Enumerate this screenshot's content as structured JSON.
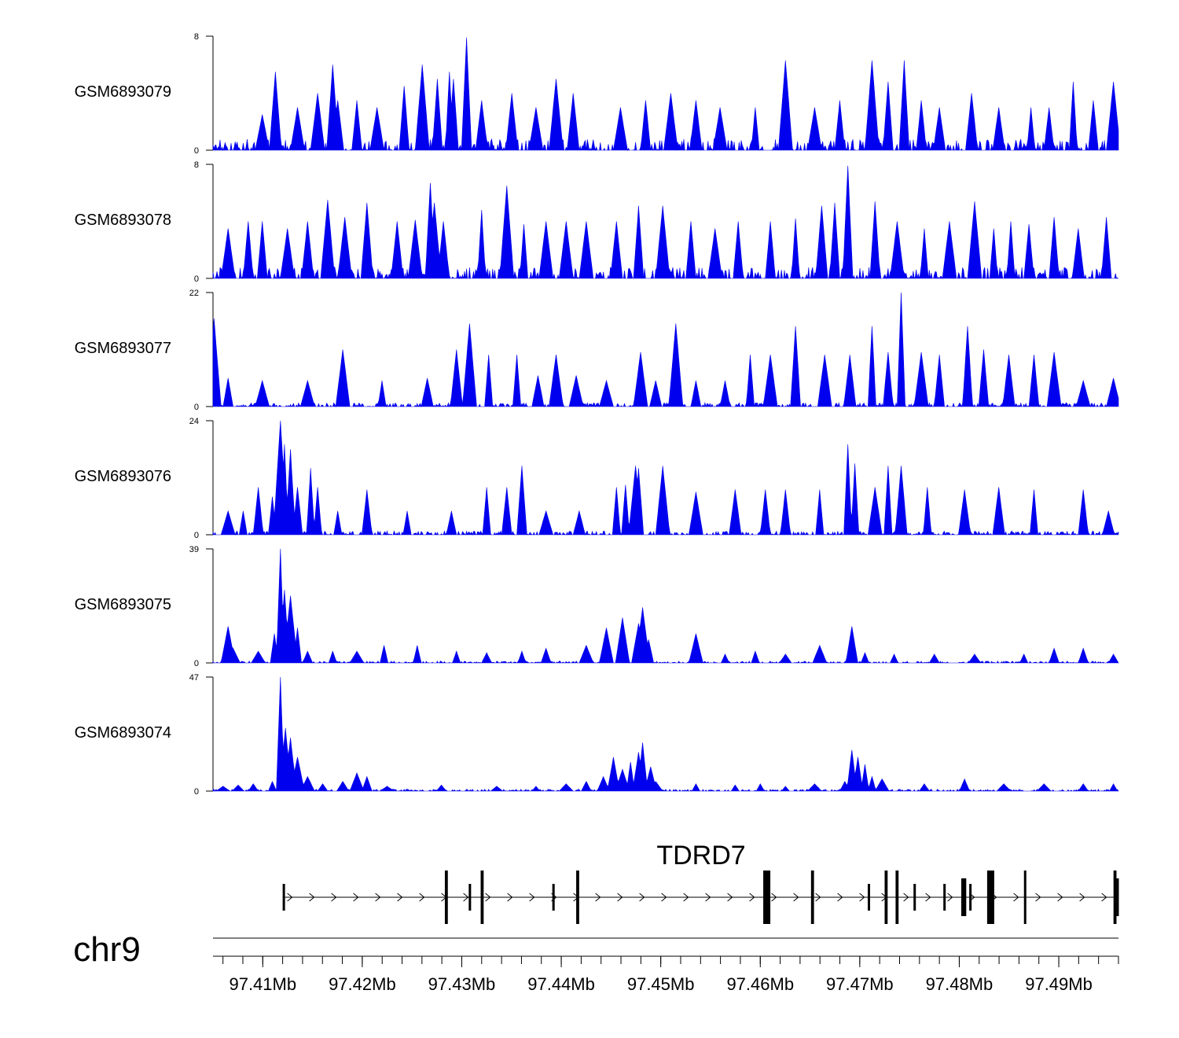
{
  "chart_data": {
    "type": "area",
    "title": "",
    "xlabel": "",
    "ylabel": "",
    "x_unit": "Mb",
    "xlim": [
      97.405,
      97.496
    ],
    "x_ticks": [
      97.41,
      97.42,
      97.43,
      97.44,
      97.45,
      97.46,
      97.47,
      97.48,
      97.49
    ],
    "x_tick_labels": [
      "97.41Mb",
      "97.42Mb",
      "97.43Mb",
      "97.44Mb",
      "97.45Mb",
      "97.46Mb",
      "97.47Mb",
      "97.48Mb",
      "97.49Mb"
    ],
    "chromosome": "chr9",
    "series": [
      {
        "name": "GSM6893079",
        "ymax": 8,
        "ymax_label": "8",
        "ymin_label": "0",
        "peaks": [
          [
            97.41,
            2.5
          ],
          [
            97.4113,
            5.5
          ],
          [
            97.4135,
            3
          ],
          [
            97.4155,
            4
          ],
          [
            97.417,
            6
          ],
          [
            97.4175,
            3.5
          ],
          [
            97.4195,
            3.5
          ],
          [
            97.4215,
            3
          ],
          [
            97.4242,
            4.5
          ],
          [
            97.426,
            6
          ],
          [
            97.4275,
            5
          ],
          [
            97.4288,
            5.5
          ],
          [
            97.4292,
            5
          ],
          [
            97.4305,
            7.9
          ],
          [
            97.432,
            3.5
          ],
          [
            97.435,
            4
          ],
          [
            97.4375,
            3
          ],
          [
            97.4395,
            5
          ],
          [
            97.4412,
            4
          ],
          [
            97.446,
            3
          ],
          [
            97.4485,
            3.5
          ],
          [
            97.451,
            4
          ],
          [
            97.4535,
            3.5
          ],
          [
            97.456,
            3
          ],
          [
            97.4595,
            3
          ],
          [
            97.4625,
            6.3
          ],
          [
            97.4655,
            3
          ],
          [
            97.468,
            3.5
          ],
          [
            97.4712,
            6.3
          ],
          [
            97.4728,
            4.8
          ],
          [
            97.4745,
            6.3
          ],
          [
            97.4762,
            3.5
          ],
          [
            97.478,
            3
          ],
          [
            97.4812,
            4
          ],
          [
            97.484,
            3
          ],
          [
            97.4872,
            3
          ],
          [
            97.489,
            3
          ],
          [
            97.4915,
            4.8
          ],
          [
            97.4935,
            3.5
          ],
          [
            97.4955,
            4.8
          ]
        ]
      },
      {
        "name": "GSM6893078",
        "ymax": 8,
        "ymax_label": "8",
        "ymin_label": "0",
        "peaks": [
          [
            97.4065,
            3.5
          ],
          [
            97.4085,
            4
          ],
          [
            97.41,
            4
          ],
          [
            97.4125,
            3.5
          ],
          [
            97.4145,
            4
          ],
          [
            97.4165,
            5.5
          ],
          [
            97.4182,
            4.3
          ],
          [
            97.4205,
            5.3
          ],
          [
            97.4235,
            4
          ],
          [
            97.4253,
            4.1
          ],
          [
            97.4268,
            6.7
          ],
          [
            97.4272,
            5.3
          ],
          [
            97.4282,
            4
          ],
          [
            97.432,
            4.8
          ],
          [
            97.4345,
            6.5
          ],
          [
            97.4362,
            3.8
          ],
          [
            97.4385,
            4
          ],
          [
            97.4405,
            4
          ],
          [
            97.4425,
            4
          ],
          [
            97.4455,
            4
          ],
          [
            97.4478,
            5.1
          ],
          [
            97.4502,
            5.1
          ],
          [
            97.453,
            4
          ],
          [
            97.4555,
            3.5
          ],
          [
            97.4578,
            4
          ],
          [
            97.461,
            4
          ],
          [
            97.4635,
            4.2
          ],
          [
            97.4662,
            5.1
          ],
          [
            97.4675,
            5.3
          ],
          [
            97.4688,
            7.9
          ],
          [
            97.4715,
            5.4
          ],
          [
            97.4738,
            4
          ],
          [
            97.4765,
            3.5
          ],
          [
            97.479,
            4
          ],
          [
            97.4815,
            5.4
          ],
          [
            97.4835,
            3.5
          ],
          [
            97.4852,
            4
          ],
          [
            97.487,
            3.8
          ],
          [
            97.4895,
            4.3
          ],
          [
            97.492,
            3.5
          ],
          [
            97.4948,
            4.3
          ]
        ]
      },
      {
        "name": "GSM6893077",
        "ymax": 22,
        "ymax_label": "22",
        "ymin_label": "0",
        "peaks": [
          [
            97.4051,
            17
          ],
          [
            97.4065,
            5.5
          ],
          [
            97.41,
            5
          ],
          [
            97.4145,
            5
          ],
          [
            97.418,
            11
          ],
          [
            97.422,
            5
          ],
          [
            97.4265,
            5.5
          ],
          [
            97.4295,
            11
          ],
          [
            97.4308,
            16
          ],
          [
            97.4327,
            10
          ],
          [
            97.4355,
            10
          ],
          [
            97.4377,
            6
          ],
          [
            97.4395,
            10
          ],
          [
            97.4415,
            6
          ],
          [
            97.4445,
            5
          ],
          [
            97.448,
            10.5
          ],
          [
            97.4495,
            5
          ],
          [
            97.4515,
            16
          ],
          [
            97.4535,
            5
          ],
          [
            97.4565,
            5
          ],
          [
            97.459,
            10
          ],
          [
            97.461,
            10
          ],
          [
            97.4635,
            15.5
          ],
          [
            97.4665,
            10
          ],
          [
            97.469,
            10
          ],
          [
            97.4712,
            15.5
          ],
          [
            97.4728,
            10.5
          ],
          [
            97.4742,
            22
          ],
          [
            97.4762,
            10.5
          ],
          [
            97.478,
            10
          ],
          [
            97.4808,
            15.5
          ],
          [
            97.4825,
            11
          ],
          [
            97.485,
            10
          ],
          [
            97.4875,
            10
          ],
          [
            97.4895,
            10.5
          ],
          [
            97.4925,
            5
          ],
          [
            97.4955,
            5.5
          ]
        ]
      },
      {
        "name": "GSM6893076",
        "ymax": 24,
        "ymax_label": "24",
        "ymin_label": "0",
        "peaks": [
          [
            97.4065,
            5
          ],
          [
            97.408,
            5
          ],
          [
            97.4095,
            10
          ],
          [
            97.411,
            8
          ],
          [
            97.4118,
            24
          ],
          [
            97.4122,
            19
          ],
          [
            97.4128,
            18
          ],
          [
            97.4135,
            10
          ],
          [
            97.4148,
            14
          ],
          [
            97.4155,
            10
          ],
          [
            97.4175,
            5
          ],
          [
            97.4205,
            9.5
          ],
          [
            97.4245,
            5
          ],
          [
            97.429,
            5
          ],
          [
            97.4325,
            10
          ],
          [
            97.4345,
            10
          ],
          [
            97.436,
            14.5
          ],
          [
            97.4385,
            5
          ],
          [
            97.4418,
            5
          ],
          [
            97.4455,
            10
          ],
          [
            97.4465,
            10.5
          ],
          [
            97.4475,
            14.5
          ],
          [
            97.4478,
            14
          ],
          [
            97.4502,
            14.5
          ],
          [
            97.4535,
            9
          ],
          [
            97.4575,
            9.5
          ],
          [
            97.4605,
            9.5
          ],
          [
            97.4625,
            9.5
          ],
          [
            97.466,
            9.5
          ],
          [
            97.4688,
            19
          ],
          [
            97.4695,
            15
          ],
          [
            97.4715,
            10
          ],
          [
            97.4728,
            14.5
          ],
          [
            97.4742,
            14.5
          ],
          [
            97.4768,
            10
          ],
          [
            97.4805,
            9.5
          ],
          [
            97.484,
            10
          ],
          [
            97.4875,
            9.5
          ],
          [
            97.4925,
            9.5
          ],
          [
            97.495,
            5
          ]
        ]
      },
      {
        "name": "GSM6893075",
        "ymax": 39,
        "ymax_label": "39",
        "ymin_label": "0",
        "peaks": [
          [
            97.4065,
            12.5
          ],
          [
            97.407,
            5
          ],
          [
            97.4095,
            4
          ],
          [
            97.4112,
            10
          ],
          [
            97.4118,
            39
          ],
          [
            97.4122,
            25
          ],
          [
            97.4128,
            23
          ],
          [
            97.4135,
            12
          ],
          [
            97.4145,
            4
          ],
          [
            97.417,
            4
          ],
          [
            97.4195,
            4
          ],
          [
            97.4222,
            6
          ],
          [
            97.4255,
            6
          ],
          [
            97.4295,
            4
          ],
          [
            97.4325,
            3.5
          ],
          [
            97.436,
            4
          ],
          [
            97.4385,
            5
          ],
          [
            97.4425,
            6
          ],
          [
            97.4445,
            12
          ],
          [
            97.4462,
            15.5
          ],
          [
            97.4478,
            13.5
          ],
          [
            97.4482,
            19
          ],
          [
            97.4488,
            8
          ],
          [
            97.4535,
            10
          ],
          [
            97.4565,
            3
          ],
          [
            97.4595,
            4
          ],
          [
            97.4625,
            3
          ],
          [
            97.466,
            6
          ],
          [
            97.4692,
            12.5
          ],
          [
            97.4705,
            3.5
          ],
          [
            97.4735,
            3
          ],
          [
            97.4775,
            3
          ],
          [
            97.4815,
            3
          ],
          [
            97.4865,
            3
          ],
          [
            97.4895,
            5
          ],
          [
            97.4925,
            5
          ],
          [
            97.4955,
            3
          ]
        ]
      },
      {
        "name": "GSM6893074",
        "ymax": 47,
        "ymax_label": "47",
        "ymin_label": "0",
        "peaks": [
          [
            97.406,
            2
          ],
          [
            97.4075,
            2.5
          ],
          [
            97.409,
            3
          ],
          [
            97.411,
            4
          ],
          [
            97.4118,
            47
          ],
          [
            97.4123,
            26
          ],
          [
            97.4128,
            22
          ],
          [
            97.4135,
            14
          ],
          [
            97.4145,
            6
          ],
          [
            97.416,
            3
          ],
          [
            97.418,
            4
          ],
          [
            97.4195,
            7.5
          ],
          [
            97.4205,
            6
          ],
          [
            97.4225,
            2
          ],
          [
            97.428,
            2.5
          ],
          [
            97.4335,
            2
          ],
          [
            97.4375,
            2
          ],
          [
            97.4405,
            3
          ],
          [
            97.4425,
            4
          ],
          [
            97.4442,
            6
          ],
          [
            97.4452,
            14
          ],
          [
            97.4462,
            9
          ],
          [
            97.447,
            12
          ],
          [
            97.4478,
            16
          ],
          [
            97.4482,
            20
          ],
          [
            97.449,
            10
          ],
          [
            97.4495,
            4
          ],
          [
            97.4535,
            3
          ],
          [
            97.4575,
            2.5
          ],
          [
            97.46,
            3
          ],
          [
            97.4625,
            2
          ],
          [
            97.4655,
            3
          ],
          [
            97.4685,
            4
          ],
          [
            97.4692,
            17
          ],
          [
            97.4698,
            14
          ],
          [
            97.4705,
            11
          ],
          [
            97.4712,
            6
          ],
          [
            97.4722,
            5
          ],
          [
            97.4765,
            3
          ],
          [
            97.4805,
            5
          ],
          [
            97.4845,
            3
          ],
          [
            97.4885,
            3
          ],
          [
            97.4925,
            3
          ],
          [
            97.4955,
            3
          ]
        ]
      }
    ],
    "gene": {
      "name": "TDRD7",
      "strand": "+",
      "start": 97.412,
      "end": 97.496,
      "exons": [
        [
          97.412,
          97.4121,
          "s"
        ],
        [
          97.4283,
          97.4286,
          "t"
        ],
        [
          97.4307,
          97.4309,
          "s"
        ],
        [
          97.4319,
          97.4322,
          "t"
        ],
        [
          97.4391,
          97.4393,
          "s"
        ],
        [
          97.4415,
          97.4418,
          "t"
        ],
        [
          97.4603,
          97.461,
          "T"
        ],
        [
          97.4651,
          97.4654,
          "t"
        ],
        [
          97.4708,
          97.471,
          "s"
        ],
        [
          97.4725,
          97.4728,
          "t"
        ],
        [
          97.4736,
          97.4739,
          "t"
        ],
        [
          97.4754,
          97.4756,
          "s"
        ],
        [
          97.4784,
          97.4786,
          "s"
        ],
        [
          97.4802,
          97.4807,
          "M"
        ],
        [
          97.481,
          97.4812,
          "s"
        ],
        [
          97.4828,
          97.4833,
          "T"
        ],
        [
          97.4865,
          97.4867,
          "t"
        ],
        [
          97.4955,
          97.4958,
          "t"
        ],
        [
          97.4958,
          97.496,
          "M"
        ]
      ]
    }
  }
}
